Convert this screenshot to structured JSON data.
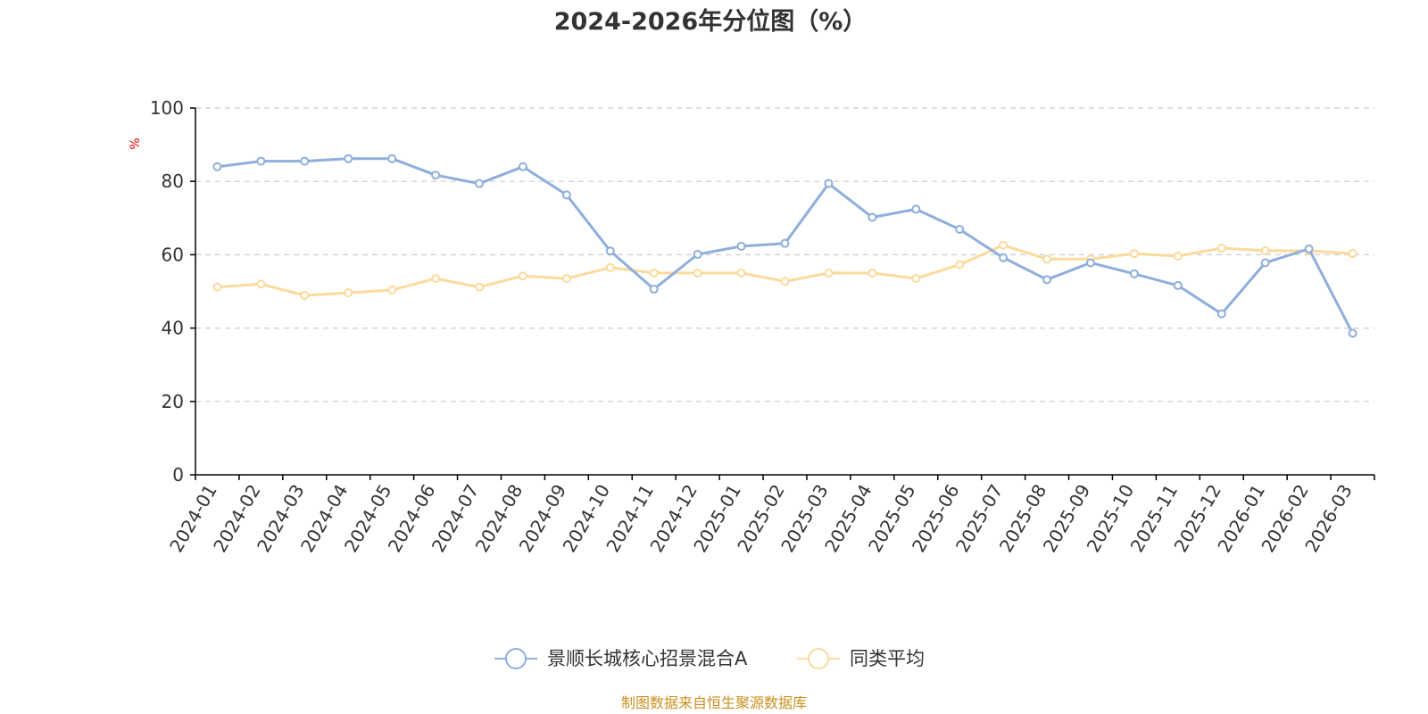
{
  "chart_data": {
    "type": "line",
    "title": "2024-2026年分位图（%）",
    "ylabel": "%",
    "ylim": [
      0,
      100
    ],
    "yticks": [
      "0",
      "20",
      "40",
      "60",
      "80",
      "100"
    ],
    "grid": true,
    "legend_position": "bottom",
    "categories": [
      "2024-01",
      "2024-02",
      "2024-03",
      "2024-04",
      "2024-05",
      "2024-06",
      "2024-07",
      "2024-08",
      "2024-09",
      "2024-10",
      "2024-11",
      "2024-12",
      "2025-01",
      "2025-02",
      "2025-03",
      "2025-04",
      "2025-05",
      "2025-06",
      "2025-07",
      "2025-08",
      "2025-09",
      "2025-10",
      "2025-11",
      "2025-12",
      "2026-01",
      "2026-02",
      "2026-03"
    ],
    "series": [
      {
        "name": "景顺长城核心招景混合A",
        "color": "#8eaedb",
        "values": [
          84,
          85.5,
          85.5,
          86.2,
          86.2,
          81.7,
          79.4,
          84,
          76.3,
          61,
          50.6,
          60.1,
          62.3,
          63.1,
          79.4,
          70.2,
          72.4,
          66.9,
          59.2,
          53.2,
          57.8,
          54.8,
          51.6,
          43.9,
          57.8,
          61.6,
          38.6
        ]
      },
      {
        "name": "同类平均",
        "color": "#fcd99c",
        "values": [
          51.2,
          52,
          48.9,
          49.6,
          50.4,
          53.5,
          51.2,
          54.2,
          53.5,
          56.5,
          55,
          55,
          55,
          52.7,
          55,
          55,
          53.5,
          57.3,
          62.6,
          58.8,
          58.8,
          60.3,
          59.6,
          61.8,
          61.1,
          61.1,
          60.3
        ]
      }
    ]
  },
  "source_note": "制图数据来自恒生聚源数据库",
  "colors": {
    "axis": "#000000",
    "grid": "#cccccc",
    "text": "#333333",
    "ylabel": "#e60000",
    "source": "#c8901f"
  }
}
